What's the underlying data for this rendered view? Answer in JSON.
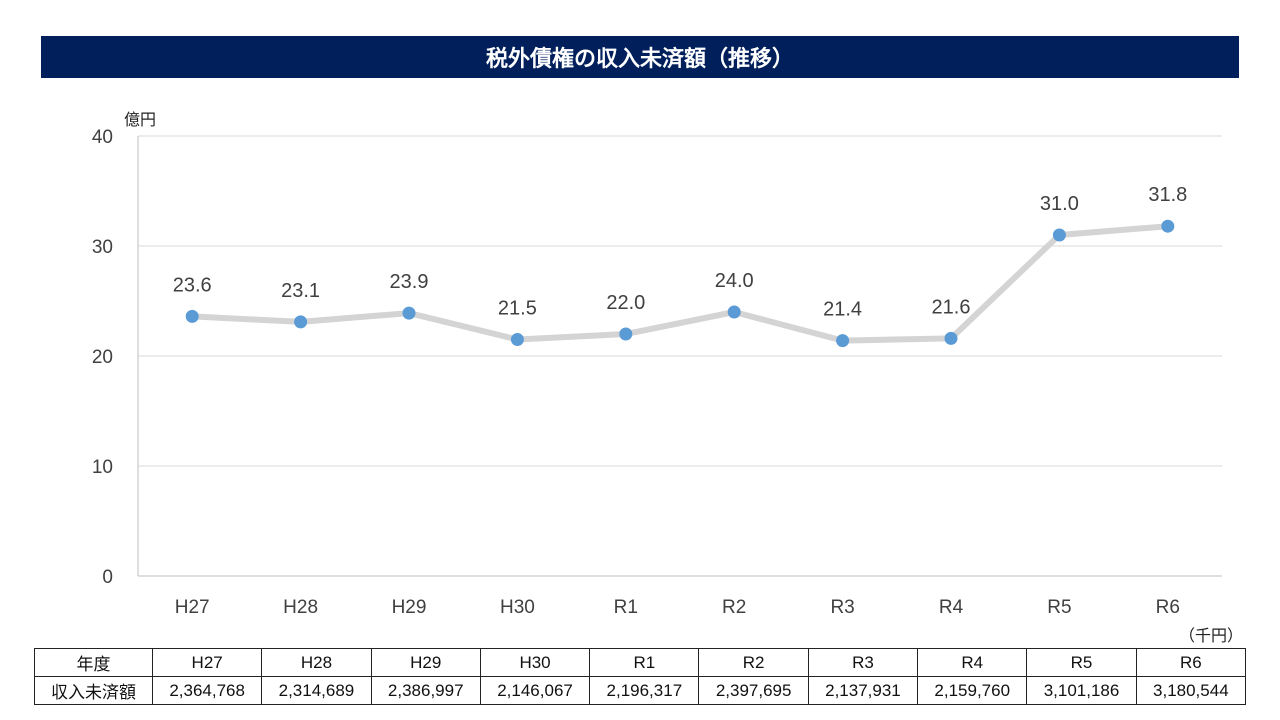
{
  "title": "税外債権の収入未済額（推移）",
  "colors": {
    "title_bg": "#001f5b",
    "line": "#d4d4d4",
    "marker": "#5b9bd5",
    "grid": "#d9d9d9",
    "axis_text": "#404040"
  },
  "chart_data": {
    "type": "line",
    "title": "税外債権の収入未済額（推移）",
    "ylabel": "億円",
    "xlabel": "",
    "ylim": [
      0,
      40
    ],
    "yticks": [
      0,
      10,
      20,
      30,
      40
    ],
    "categories": [
      "H27",
      "H28",
      "H29",
      "H30",
      "R1",
      "R2",
      "R3",
      "R4",
      "R5",
      "R6"
    ],
    "series": [
      {
        "name": "収入未済額",
        "values": [
          23.6,
          23.1,
          23.9,
          21.5,
          22.0,
          24.0,
          21.4,
          21.6,
          31.0,
          31.8
        ],
        "labels": [
          "23.6",
          "23.1",
          "23.9",
          "21.5",
          "22.0",
          "24.0",
          "21.4",
          "21.6",
          "31.0",
          "31.8"
        ]
      }
    ],
    "grid": true,
    "legend": "none"
  },
  "table": {
    "unit": "（千円）",
    "header_label": "年度",
    "row_label": "収入未済額",
    "years": [
      "H27",
      "H28",
      "H29",
      "H30",
      "R1",
      "R2",
      "R3",
      "R4",
      "R5",
      "R6"
    ],
    "values": [
      "2,364,768",
      "2,314,689",
      "2,386,997",
      "2,146,067",
      "2,196,317",
      "2,397,695",
      "2,137,931",
      "2,159,760",
      "3,101,186",
      "3,180,544"
    ]
  }
}
